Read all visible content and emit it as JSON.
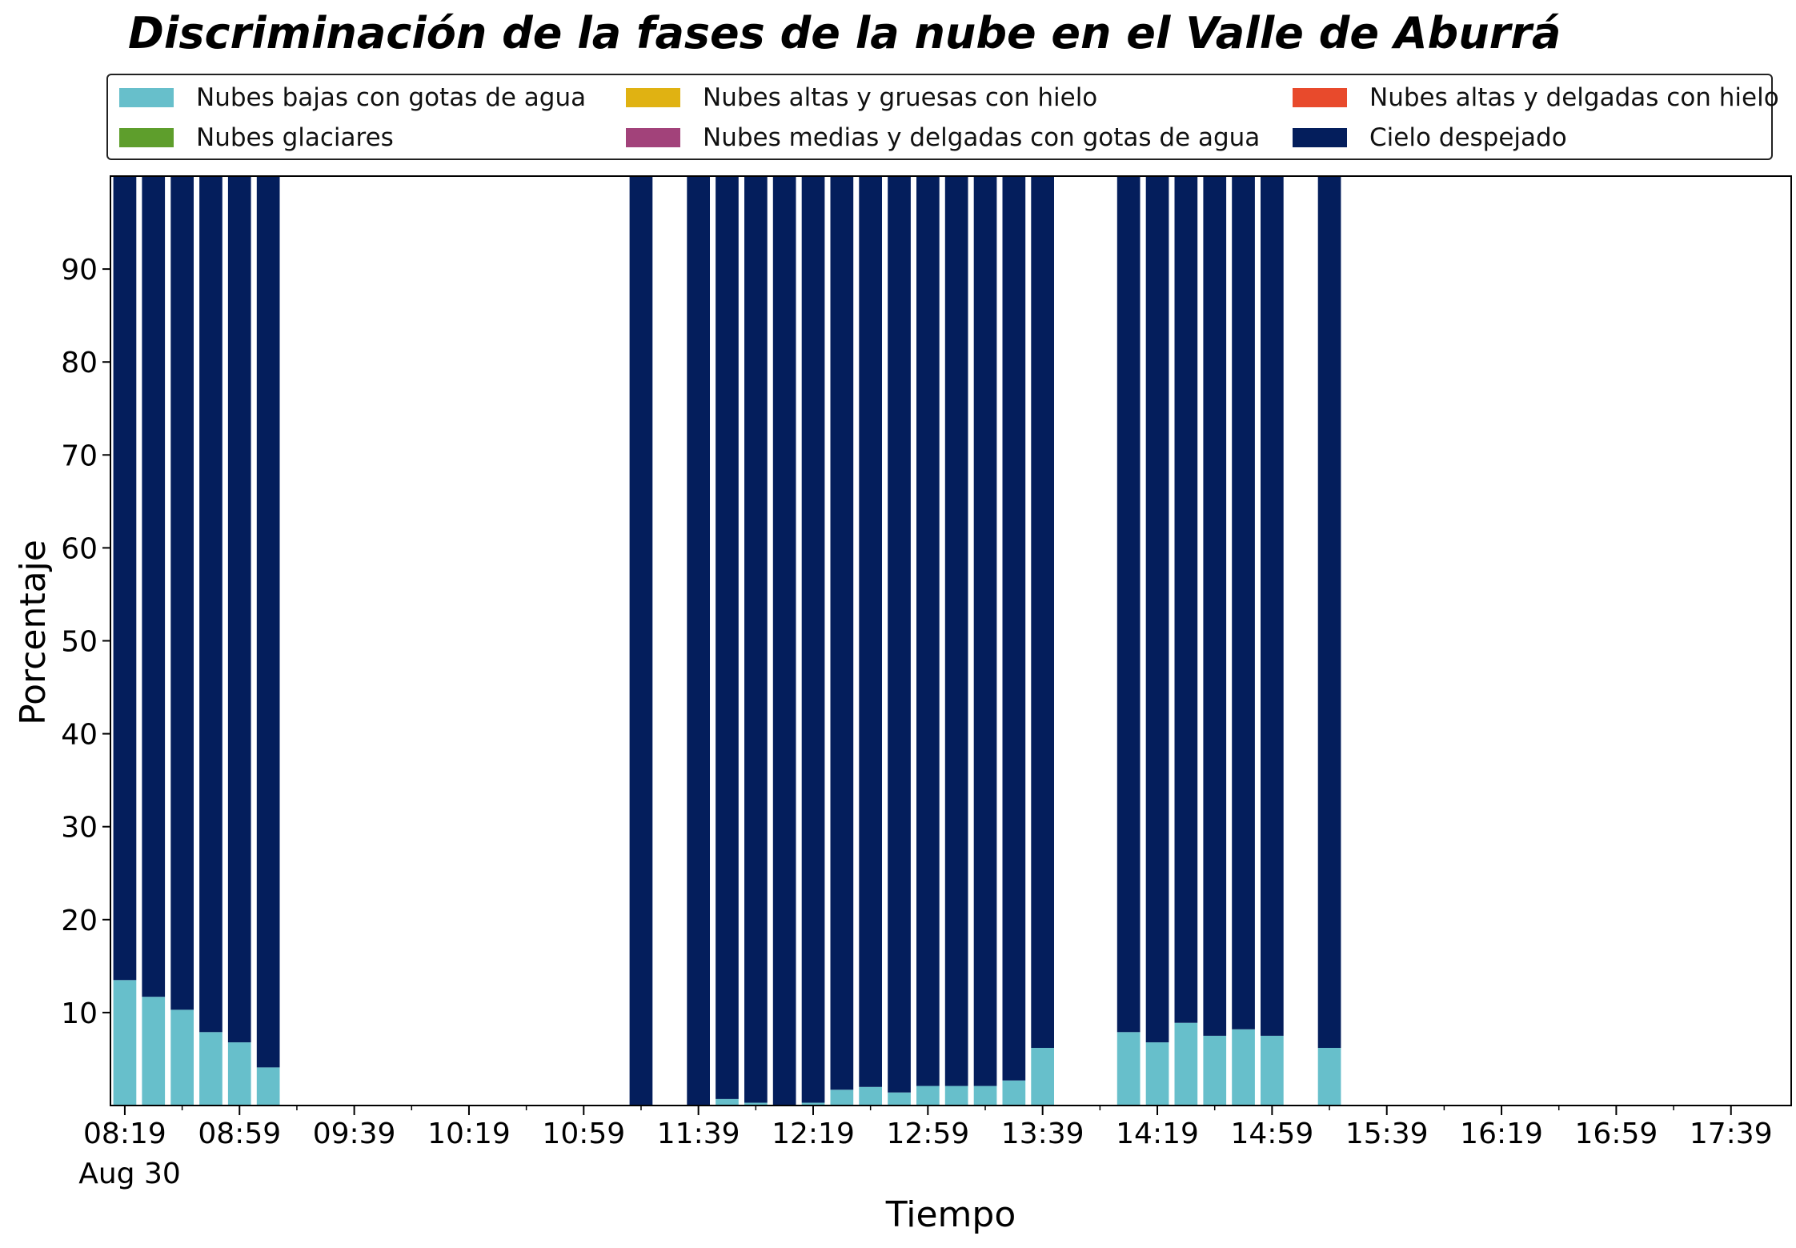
{
  "chart_data": {
    "type": "bar",
    "stacked": true,
    "title": "Discriminación de la fases de la nube en el Valle de Aburrá",
    "xlabel": "Tiempo",
    "ylabel": "Porcentaje",
    "ylim": [
      0,
      100
    ],
    "yticks": [
      10,
      20,
      30,
      40,
      50,
      60,
      70,
      80,
      90
    ],
    "x_start": "08:14",
    "x_end": "18:00",
    "bar_width_minutes": 8,
    "xticks": [
      "08:19",
      "08:59",
      "09:39",
      "10:19",
      "10:59",
      "11:39",
      "12:19",
      "12:59",
      "13:39",
      "14:19",
      "14:59",
      "15:39",
      "16:19",
      "16:59",
      "17:39"
    ],
    "date_label": "Aug 30",
    "legend_position": "top",
    "grid": false,
    "x": [
      "08:19",
      "08:29",
      "08:39",
      "08:49",
      "08:59",
      "09:09",
      "11:19",
      "11:39",
      "11:49",
      "11:59",
      "12:09",
      "12:19",
      "12:29",
      "12:39",
      "12:49",
      "12:59",
      "13:09",
      "13:19",
      "13:29",
      "13:39",
      "14:09",
      "14:19",
      "14:29",
      "14:39",
      "14:49",
      "14:59",
      "15:19"
    ],
    "series": [
      {
        "name": "Nubes bajas con gotas de agua",
        "color": "#67bfcb",
        "values": [
          13.5,
          11.7,
          10.3,
          7.9,
          6.8,
          4.1,
          0,
          0,
          0.7,
          0.3,
          0,
          0.3,
          1.7,
          2.0,
          1.4,
          2.1,
          2.1,
          2.1,
          2.7,
          6.2,
          7.9,
          6.8,
          8.9,
          7.5,
          8.2,
          7.5,
          6.2
        ]
      },
      {
        "name": "Nubes glaciares",
        "color": "#5e9e2c",
        "values": [
          0,
          0,
          0,
          0,
          0,
          0,
          0,
          0,
          0,
          0,
          0,
          0,
          0,
          0,
          0,
          0,
          0,
          0,
          0,
          0,
          0,
          0,
          0,
          0,
          0,
          0,
          0
        ]
      },
      {
        "name": "Nubes altas y gruesas con hielo",
        "color": "#e0b212",
        "values": [
          0,
          0,
          0,
          0,
          0,
          0,
          0,
          0,
          0,
          0,
          0,
          0,
          0,
          0,
          0,
          0,
          0,
          0,
          0,
          0,
          0,
          0,
          0,
          0,
          0,
          0,
          0
        ]
      },
      {
        "name": "Nubes medias y delgadas con gotas de agua",
        "color": "#a2427a",
        "values": [
          0,
          0,
          0,
          0,
          0,
          0,
          0,
          0,
          0,
          0,
          0,
          0,
          0,
          0,
          0,
          0,
          0,
          0,
          0,
          0,
          0,
          0,
          0,
          0,
          0,
          0,
          0
        ]
      },
      {
        "name": "Nubes altas y delgadas con hielo",
        "color": "#e84a2c",
        "values": [
          0,
          0,
          0,
          0,
          0,
          0,
          0,
          0,
          0,
          0,
          0,
          0,
          0,
          0,
          0,
          0,
          0,
          0,
          0,
          0,
          0,
          0,
          0,
          0,
          0,
          0,
          0
        ]
      },
      {
        "name": "Cielo despejado",
        "color": "#041e5c",
        "values": [
          86.5,
          88.3,
          89.7,
          92.1,
          93.2,
          95.9,
          100,
          100,
          99.3,
          99.7,
          100,
          99.7,
          98.3,
          98.0,
          98.6,
          97.9,
          97.9,
          97.9,
          97.3,
          93.8,
          92.1,
          93.2,
          91.1,
          92.5,
          91.8,
          92.5,
          93.8
        ]
      }
    ]
  }
}
